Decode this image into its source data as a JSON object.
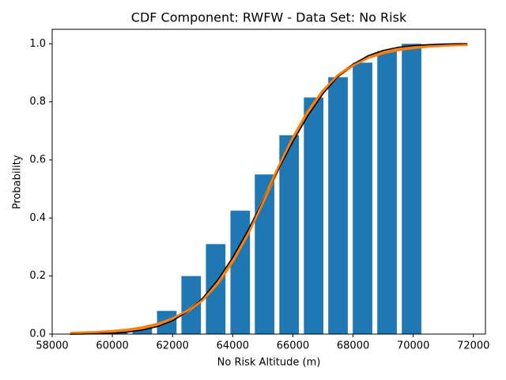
{
  "chart_data": {
    "type": "bar",
    "title": "CDF Component: RWFW - Data Set: No Risk",
    "x_label": "No Risk Altitude (m)",
    "y_label": "Probability",
    "bars": {
      "color": "#1f77b4",
      "width": 650,
      "x": [
        60180,
        60995,
        61809,
        62620,
        63435,
        64250,
        65060,
        65875,
        66690,
        67500,
        68315,
        69130,
        69945
      ],
      "values": [
        0.005,
        0.02,
        0.08,
        0.2,
        0.31,
        0.425,
        0.55,
        0.685,
        0.815,
        0.885,
        0.935,
        0.975,
        1.0
      ]
    },
    "line_x": [
      58600,
      59000,
      59500,
      60000,
      60500,
      61000,
      61500,
      62000,
      62500,
      63000,
      63500,
      64000,
      64500,
      65000,
      65500,
      66000,
      66500,
      67000,
      67500,
      68000,
      68500,
      69000,
      69500,
      70000,
      70500,
      71000,
      71500,
      71800
    ],
    "series": [
      {
        "color": "#ff7f0e",
        "width": 4,
        "values": [
          0.0025,
          0.0036,
          0.0056,
          0.0088,
          0.0138,
          0.0215,
          0.0335,
          0.052,
          0.079,
          0.119,
          0.176,
          0.252,
          0.346,
          0.455,
          0.568,
          0.674,
          0.765,
          0.837,
          0.89,
          0.927,
          0.953,
          0.969,
          0.98,
          0.987,
          0.992,
          0.995,
          0.997,
          0.9975
        ]
      },
      {
        "color": "#000000",
        "width": 1.6,
        "values": [
          0.0003,
          0.0006,
          0.0013,
          0.003,
          0.007,
          0.014,
          0.026,
          0.046,
          0.078,
          0.123,
          0.186,
          0.264,
          0.356,
          0.458,
          0.563,
          0.663,
          0.753,
          0.828,
          0.887,
          0.929,
          0.959,
          0.977,
          0.988,
          0.994,
          0.997,
          0.999,
          1.0,
          1.0
        ]
      },
      {
        "color": "#ff7f0e",
        "width": 1.4,
        "values": [
          0.0025,
          0.0036,
          0.0056,
          0.0088,
          0.0138,
          0.0215,
          0.0335,
          0.052,
          0.079,
          0.119,
          0.176,
          0.252,
          0.346,
          0.455,
          0.568,
          0.674,
          0.765,
          0.837,
          0.89,
          0.927,
          0.953,
          0.969,
          0.98,
          0.987,
          0.992,
          0.995,
          0.997,
          0.9975
        ]
      }
    ],
    "xlim": [
      58000,
      72400
    ],
    "xticks": [
      58000,
      60000,
      62000,
      64000,
      66000,
      68000,
      70000,
      72000
    ],
    "ylim": [
      0,
      1.05
    ],
    "yticks": [
      {
        "value": 0,
        "label": "0.0"
      },
      0.2,
      0.4,
      0.6,
      0.8,
      {
        "value": 1,
        "label": "1.0"
      }
    ]
  }
}
